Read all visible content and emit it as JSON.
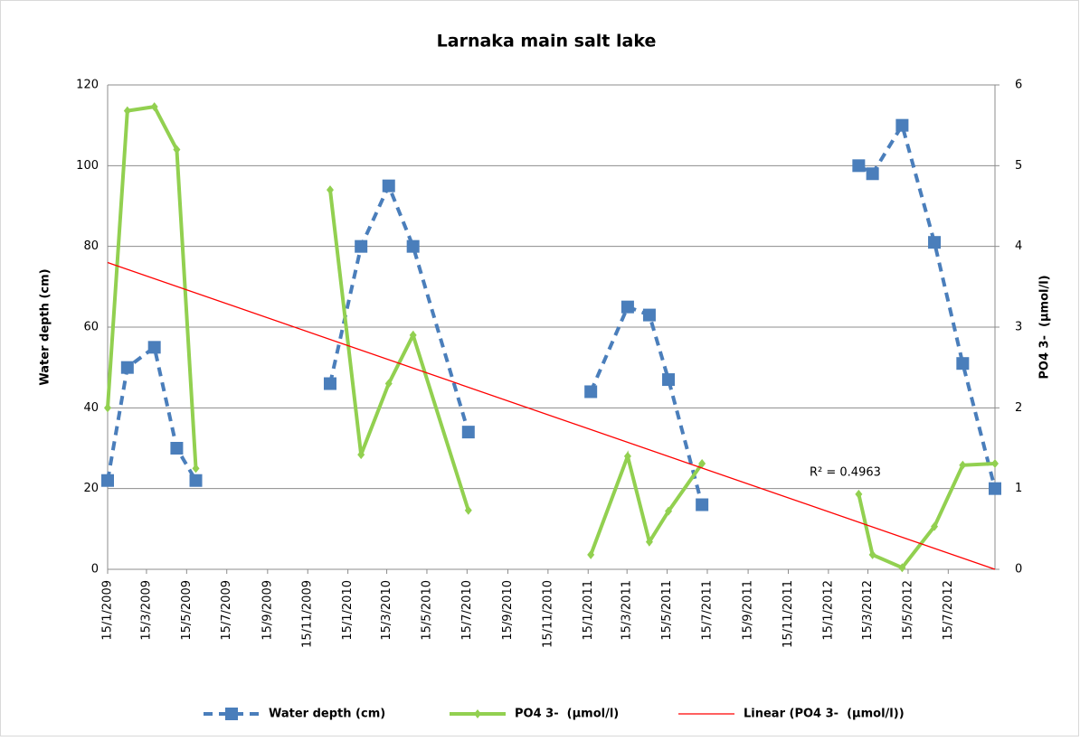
{
  "chart_data": {
    "type": "line",
    "title": "Larnaka main salt lake",
    "ylabel": "Water depth (cm)",
    "y2label": "PO4 3-  (µmol/l)",
    "x": [
      "2009-01-15",
      "2009-02-14",
      "2009-03-27",
      "2009-04-30",
      "2009-05-29",
      null,
      "2009-12-19",
      "2010-02-04",
      "2010-03-18",
      "2010-04-24",
      "2010-07-17",
      null,
      "2011-01-19",
      "2011-03-16",
      "2011-04-18",
      "2011-05-17",
      "2011-07-07",
      null,
      "2012-03-01",
      "2012-03-22",
      "2012-05-06",
      "2012-06-24",
      "2012-08-06",
      "2012-09-24"
    ],
    "series": [
      {
        "name": "Water depth (cm)",
        "color": "#4a7ebb",
        "axis": "y",
        "values": [
          22,
          50,
          55,
          30,
          22,
          null,
          46,
          80,
          95,
          80,
          34,
          null,
          44,
          65,
          63,
          47,
          16,
          null,
          100,
          98,
          110,
          81,
          51,
          20
        ]
      },
      {
        "name": "PO4 3-  (µmol/l)",
        "color": "#92d050",
        "axis": "y2",
        "values": [
          2.0,
          5.68,
          5.73,
          5.2,
          1.25,
          null,
          4.7,
          1.42,
          2.3,
          2.9,
          0.73,
          null,
          0.18,
          1.4,
          0.34,
          0.72,
          1.31,
          null,
          0.93,
          0.18,
          0.02,
          0.53,
          1.29,
          1.31
        ]
      }
    ],
    "trendline": {
      "name": "Linear (PO4 3-  (µmol/l))",
      "color": "#ff0000",
      "axis": "y2",
      "x": [
        "2009-01-15",
        "2012-09-24"
      ],
      "values": [
        3.8,
        0
      ]
    },
    "annotation": "R² = 0.4963",
    "xlim": [
      "2009-01-15",
      "2012-09-24"
    ],
    "xticks": [
      {
        "value": "2009-01-15",
        "label": "15/1/2009"
      },
      {
        "value": "2009-03-15",
        "label": "15/3/2009"
      },
      {
        "value": "2009-05-15",
        "label": "15/5/2009"
      },
      {
        "value": "2009-07-15",
        "label": "15/7/2009"
      },
      {
        "value": "2009-09-15",
        "label": "15/9/2009"
      },
      {
        "value": "2009-11-15",
        "label": "15/11/2009"
      },
      {
        "value": "2010-01-15",
        "label": "15/1/2010"
      },
      {
        "value": "2010-03-15",
        "label": "15/3/2010"
      },
      {
        "value": "2010-05-15",
        "label": "15/5/2010"
      },
      {
        "value": "2010-07-15",
        "label": "15/7/2010"
      },
      {
        "value": "2010-09-15",
        "label": "15/9/2010"
      },
      {
        "value": "2010-11-15",
        "label": "15/11/2010"
      },
      {
        "value": "2011-01-15",
        "label": "15/1/2011"
      },
      {
        "value": "2011-03-15",
        "label": "15/3/2011"
      },
      {
        "value": "2011-05-15",
        "label": "15/5/2011"
      },
      {
        "value": "2011-07-15",
        "label": "15/7/2011"
      },
      {
        "value": "2011-09-15",
        "label": "15/9/2011"
      },
      {
        "value": "2011-11-15",
        "label": "15/11/2011"
      },
      {
        "value": "2012-01-15",
        "label": "15/1/2012"
      },
      {
        "value": "2012-03-15",
        "label": "15/3/2012"
      },
      {
        "value": "2012-05-15",
        "label": "15/5/2012"
      },
      {
        "value": "2012-07-15",
        "label": "15/7/2012"
      }
    ],
    "ylim": [
      0,
      120
    ],
    "yticks": [
      0,
      20,
      40,
      60,
      80,
      100,
      120
    ],
    "y2lim": [
      0,
      6
    ],
    "y2ticks": [
      0,
      1,
      2,
      3,
      4,
      5,
      6
    ],
    "grid": true
  }
}
